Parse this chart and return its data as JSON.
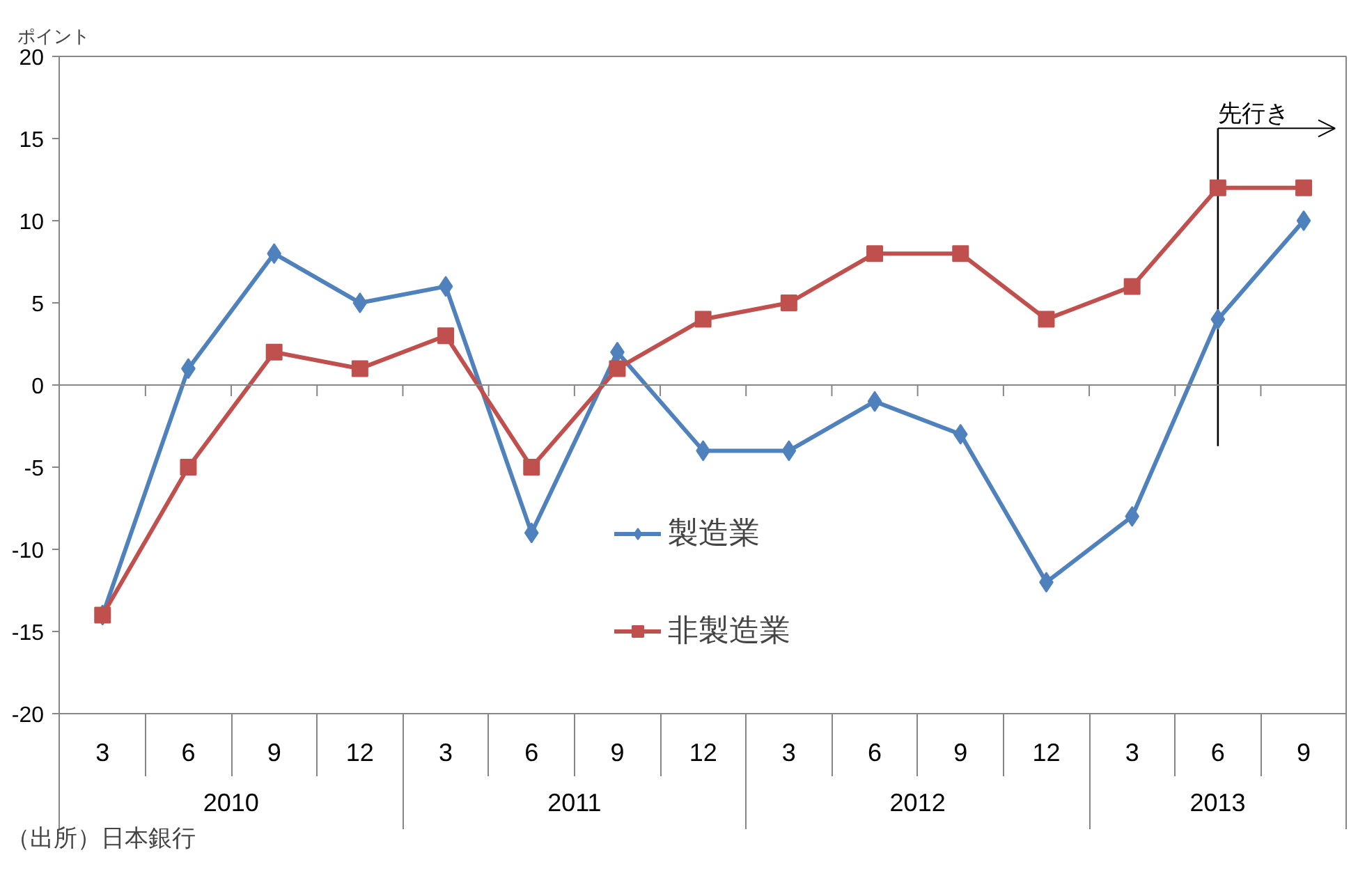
{
  "chart_data": {
    "type": "line",
    "ylabel": "ポイント",
    "x": [
      "2010-03",
      "2010-06",
      "2010-09",
      "2010-12",
      "2011-03",
      "2011-06",
      "2011-09",
      "2011-12",
      "2012-03",
      "2012-06",
      "2012-09",
      "2012-12",
      "2013-03",
      "2013-06",
      "2013-09"
    ],
    "xlim": [
      "2010-01-16",
      "2013-10-16"
    ],
    "xticks": [
      {
        "value": "2010-03",
        "label": "3"
      },
      {
        "value": "2010-06",
        "label": "6"
      },
      {
        "value": "2010-09",
        "label": "9"
      },
      {
        "value": "2010-12",
        "label": "12"
      },
      {
        "value": "2011-03",
        "label": "3"
      },
      {
        "value": "2011-06",
        "label": "6"
      },
      {
        "value": "2011-09",
        "label": "9"
      },
      {
        "value": "2011-12",
        "label": "12"
      },
      {
        "value": "2012-03",
        "label": "3"
      },
      {
        "value": "2012-06",
        "label": "6"
      },
      {
        "value": "2012-09",
        "label": "9"
      },
      {
        "value": "2012-12",
        "label": "12"
      },
      {
        "value": "2013-03",
        "label": "3"
      },
      {
        "value": "2013-06",
        "label": "6"
      },
      {
        "value": "2013-09",
        "label": "9"
      }
    ],
    "ylim": [
      -20,
      20
    ],
    "yticks": [
      -20,
      -15,
      -10,
      -5,
      0,
      5,
      10,
      15,
      20
    ],
    "series": [
      {
        "name": "製造業",
        "color": "#4f81bd",
        "marker": "diamond",
        "values": [
          -14,
          1,
          8,
          5,
          6,
          -9,
          2,
          -4,
          -4,
          -1,
          -3,
          -12,
          -8,
          4,
          10
        ]
      },
      {
        "name": "非製造業",
        "color": "#c0504d",
        "marker": "square",
        "values": [
          -14,
          -5,
          2,
          1,
          3,
          -5,
          1,
          4,
          5,
          8,
          8,
          4,
          6,
          12,
          12
        ]
      }
    ],
    "ref_lines": [
      {
        "axis": "y",
        "value": 0,
        "color": "#868686"
      },
      {
        "axis": "x",
        "value": "2013-06",
        "label": "先行き",
        "color": "#000000"
      }
    ],
    "annotations": [
      "2010",
      "2011",
      "2012",
      "2013",
      "（出所）日本銀行"
    ],
    "grid": false,
    "legend": "bottom",
    "line_style": "solid"
  }
}
